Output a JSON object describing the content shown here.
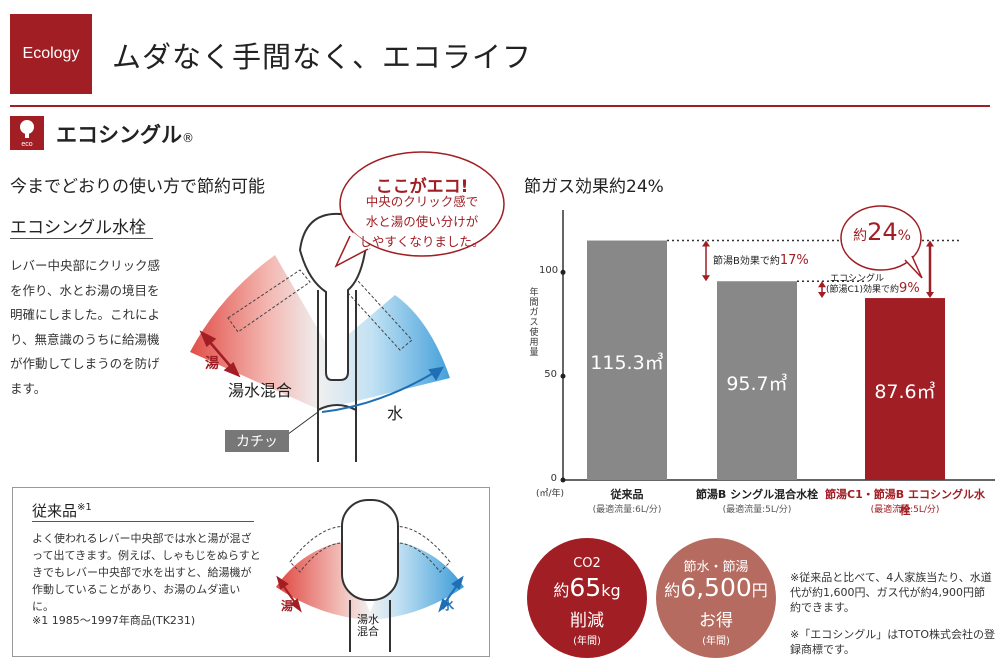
{
  "header": {
    "tag": "Ecology",
    "title": "ムダなく手間なく、エコライフ"
  },
  "section": {
    "icon_label": "eco",
    "title": "エコシングル",
    "reg": "®",
    "lead": "今までどおりの使い方で節約可能",
    "sub_title": "エコシングル水栓",
    "body": "レバー中央部にクリック感を作り、水とお湯の境目を明確にしました。これにより、無意識のうちに給湯機が作動してしまうのを防げます。"
  },
  "bubble": {
    "title": "ここがエコ!",
    "line1": "中央のクリック感で",
    "line2": "水と湯の使い分けが",
    "line3": "しやすくなりました。"
  },
  "diagram": {
    "hot": "湯",
    "mixed": "湯水混合",
    "cold": "水",
    "click": "カチッ"
  },
  "conventional": {
    "title": "従来品",
    "title_note": "※1",
    "text": "よく使われるレバー中央部では水と湯が混ざって出てきます。例えば、しゃもじをぬらすときでもレバー中央部で水を出すと、給湯機が作動していることがあり、お湯のムダ遣いに。",
    "note": "※1 1985〜1997年商品(TK231)",
    "hot": "湯",
    "cold": "水",
    "mixed_line1": "湯水",
    "mixed_line2": "混合"
  },
  "chart_title": "節ガス効果約24%",
  "chart_data": {
    "type": "bar",
    "ylabel": "年間ガス使用量",
    "unit_label": "(㎥/年)",
    "ylim": [
      0,
      130
    ],
    "yticks": [
      0,
      50,
      100
    ],
    "categories": [
      "従来品",
      "節湯B シングル混合水栓",
      "節湯C1・節湯B エコシングル水栓"
    ],
    "category_notes": [
      "(最適流量:6L/分)",
      "(最適流量:5L/分)",
      "(最適流量:5L/分)"
    ],
    "values": [
      115.3,
      95.7,
      87.6
    ],
    "value_labels": [
      "115.3㎥",
      "95.7㎥",
      "87.6㎥"
    ],
    "colors": [
      "#888888",
      "#888888",
      "#a01e24"
    ],
    "annotations": {
      "b_effect_prefix": "節湯B効果で約",
      "b_effect_value": "17%",
      "c1_line1": "エコシングル",
      "c1_prefix": "(節湯C1)効果で約",
      "c1_value": "9%",
      "total_prefix": "約",
      "total_value": "24",
      "total_unit": "%"
    }
  },
  "circles": [
    {
      "l1": "CO2",
      "l2_prefix": "約",
      "l2_num": "65",
      "l2_unit": "kg",
      "l3": "削減",
      "l4": "(年間)"
    },
    {
      "l1": "節水・節湯",
      "l2_prefix": "約",
      "l2_num": "6,500",
      "l2_unit": "円",
      "l3": "お得",
      "l4": "(年間)"
    }
  ],
  "notes": {
    "n1": "※従来品と比べて、4人家族当たり、水道代が約1,600円、ガス代が約4,900円節約できます。",
    "n2": "※「エコシングル」はTOTO株式会社の登録商標です。"
  },
  "colors": {
    "accent": "#a01e24",
    "gray_bar": "#888888",
    "blue": "#1e6fb5"
  }
}
